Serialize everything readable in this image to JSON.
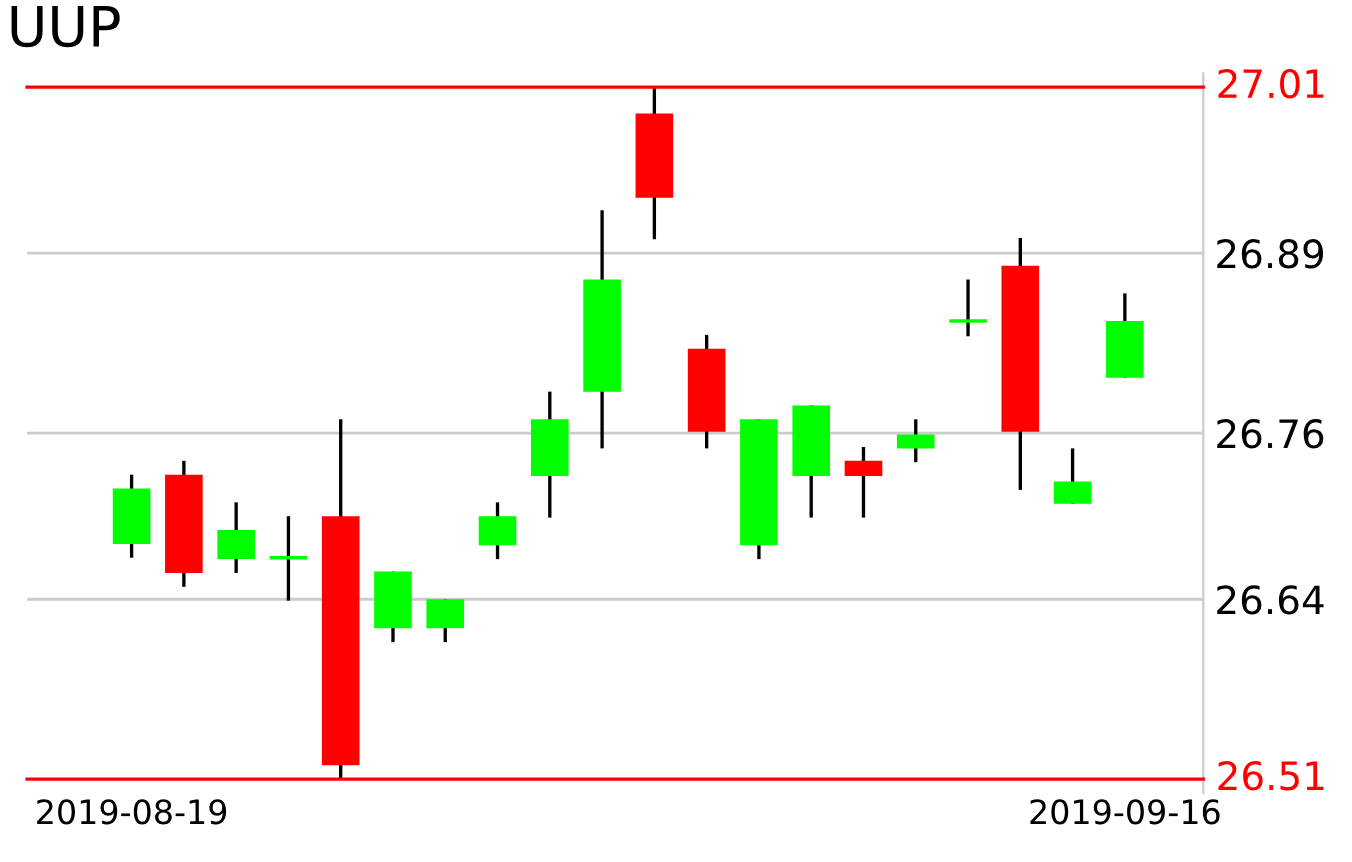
{
  "chart_data": {
    "type": "candlestick",
    "title": "UUP",
    "categories": [
      "2019-08-19",
      null,
      null,
      null,
      null,
      null,
      null,
      null,
      null,
      null,
      null,
      null,
      null,
      null,
      null,
      null,
      null,
      null,
      null,
      "2019-09-16"
    ],
    "ohlc": [
      [
        26.68,
        26.73,
        26.67,
        26.72
      ],
      [
        26.73,
        26.74,
        26.649,
        26.659
      ],
      [
        26.669,
        26.71,
        26.659,
        26.69
      ],
      [
        26.67,
        26.7,
        26.639,
        26.67
      ],
      [
        26.7,
        26.77,
        26.51,
        26.52
      ],
      [
        26.619,
        26.66,
        26.609,
        26.66
      ],
      [
        26.619,
        26.64,
        26.609,
        26.64
      ],
      [
        26.679,
        26.71,
        26.669,
        26.7
      ],
      [
        26.729,
        26.79,
        26.699,
        26.77
      ],
      [
        26.79,
        26.921,
        26.749,
        26.871
      ],
      [
        26.991,
        27.01,
        26.9,
        26.93
      ],
      [
        26.821,
        26.831,
        26.749,
        26.761
      ],
      [
        26.679,
        26.77,
        26.669,
        26.77
      ],
      [
        26.729,
        26.78,
        26.699,
        26.78
      ],
      [
        26.74,
        26.75,
        26.699,
        26.729
      ],
      [
        26.749,
        26.77,
        26.739,
        26.759
      ],
      [
        26.841,
        26.871,
        26.83,
        26.841
      ],
      [
        26.881,
        26.901,
        26.719,
        26.761
      ],
      [
        26.709,
        26.749,
        26.709,
        26.725
      ],
      [
        26.8,
        26.861,
        26.8,
        26.841
      ]
    ],
    "colors": [
      "#00ff00",
      "#ff0000",
      "#00ff00",
      "#00ff00",
      "#ff0000",
      "#00ff00",
      "#00ff00",
      "#00ff00",
      "#00ff00",
      "#00ff00",
      "#ff0000",
      "#ff0000",
      "#00ff00",
      "#00ff00",
      "#ff0000",
      "#00ff00",
      "#00ff00",
      "#ff0000",
      "#00ff00",
      "#00ff00"
    ],
    "ylim": [
      26.5,
      27.02
    ],
    "yticks": [
      26.64,
      26.76,
      26.89
    ],
    "grid": "y",
    "ref_lines": [
      {
        "axis": "y",
        "value": 27.01,
        "label": "27.01",
        "color": "#ff0000"
      },
      {
        "axis": "y",
        "value": 26.51,
        "label": "26.51",
        "color": "#ff0000"
      }
    ]
  }
}
